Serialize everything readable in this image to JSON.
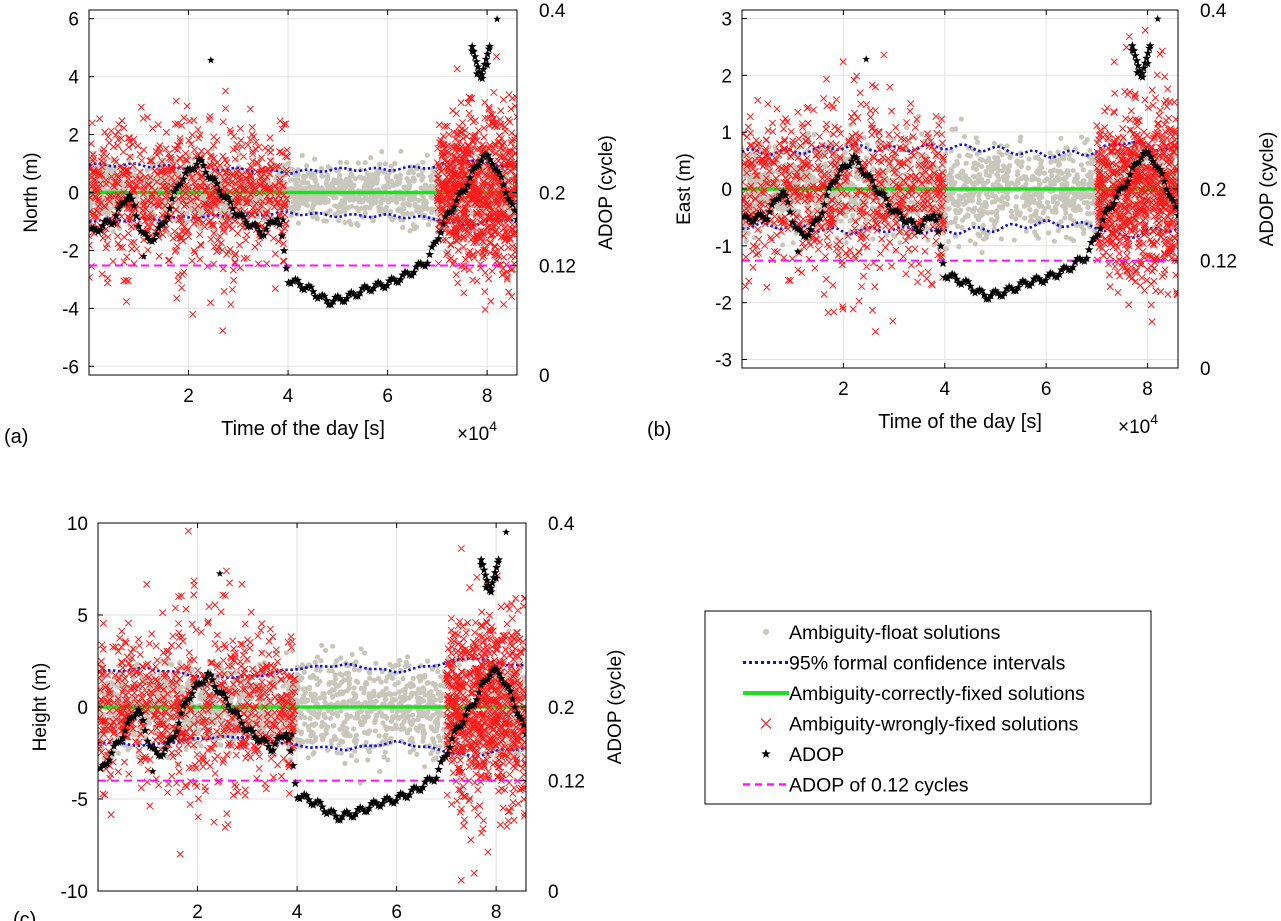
{
  "chart_data": [
    {
      "panel_label": "(a)",
      "type": "scatter",
      "xlabel": "Time of the day [s]",
      "x_multiplier": "×10^4",
      "ylabel": "North (m)",
      "y2label": "ADOP (cycle)",
      "xlim": [
        0,
        8.6
      ],
      "ylim": [
        -6.3,
        6.3
      ],
      "y2lim": [
        0,
        0.4
      ],
      "xticks": [
        "2",
        "4",
        "6",
        "8"
      ],
      "yticks": [
        "-6",
        "-4",
        "-2",
        "0",
        "2",
        "4",
        "6"
      ],
      "y2ticks": [
        "0",
        "0.12",
        "0.2",
        "0.4"
      ],
      "ci": 0.9,
      "noise": 1.0,
      "grid": true,
      "series": [
        {
          "name": "Ambiguity-float solutions",
          "marker": "dot",
          "color": "#c9c6bb"
        },
        {
          "name": "95% formal confidence intervals",
          "values": [
            [
              0,
              0.95
            ],
            [
              1,
              0.95
            ],
            [
              2,
              0.85
            ],
            [
              3,
              0.8
            ],
            [
              4,
              0.7
            ],
            [
              5,
              0.8
            ],
            [
              6,
              0.8
            ],
            [
              7,
              0.9
            ],
            [
              7.5,
              1.15
            ],
            [
              8,
              1.0
            ],
            [
              8.6,
              0.9
            ]
          ],
          "color": "#1010d8"
        },
        {
          "name": "Ambiguity-correctly-fixed solutions",
          "values": [
            [
              0,
              0
            ],
            [
              8.6,
              0
            ]
          ],
          "color": "#1ee01e"
        },
        {
          "name": "Ambiguity-wrongly-fixed solutions",
          "marker": "x",
          "color": "#ff1a1a",
          "spread": 1.6
        },
        {
          "name": "ADOP",
          "marker": "star",
          "color": "#000000",
          "values": [
            [
              0,
              0.155
            ],
            [
              0.5,
              0.17
            ],
            [
              0.8,
              0.2
            ],
            [
              1.0,
              0.165
            ],
            [
              1.2,
              0.145
            ],
            [
              1.5,
              0.165
            ],
            [
              1.8,
              0.21
            ],
            [
              2.2,
              0.235
            ],
            [
              2.6,
              0.205
            ],
            [
              3.0,
              0.175
            ],
            [
              3.5,
              0.155
            ],
            [
              3.8,
              0.175
            ],
            [
              4.0,
              0.105
            ],
            [
              4.4,
              0.095
            ],
            [
              4.8,
              0.08
            ],
            [
              5.2,
              0.085
            ],
            [
              5.6,
              0.095
            ],
            [
              6.0,
              0.1
            ],
            [
              6.4,
              0.11
            ],
            [
              6.8,
              0.125
            ],
            [
              7.2,
              0.175
            ],
            [
              7.5,
              0.2
            ],
            [
              7.9,
              0.24
            ],
            [
              8.1,
              0.235
            ],
            [
              8.4,
              0.2
            ],
            [
              8.6,
              0.17
            ]
          ],
          "outliers": [
            [
              2.45,
              0.345
            ],
            [
              8.2,
              0.39
            ],
            [
              1.1,
              0.13
            ],
            [
              3.9,
              0.17
            ]
          ],
          "spike": [
            [
              7.7,
              0.355
            ],
            [
              7.8,
              0.33
            ],
            [
              7.9,
              0.325
            ],
            [
              8.0,
              0.34
            ],
            [
              8.05,
              0.36
            ]
          ]
        },
        {
          "name": "ADOP of 0.12 cycles",
          "values": [
            [
              0,
              0.12
            ],
            [
              8.6,
              0.12
            ]
          ],
          "color": "#ff10ff"
        }
      ]
    },
    {
      "panel_label": "(b)",
      "type": "scatter",
      "xlabel": "Time of the day [s]",
      "x_multiplier": "×10^4",
      "ylabel": "East (m)",
      "y2label": "ADOP (cycle)",
      "xlim": [
        0,
        8.6
      ],
      "ylim": [
        -3.15,
        3.15
      ],
      "y2lim": [
        0,
        0.4
      ],
      "xticks": [
        "2",
        "4",
        "6",
        "8"
      ],
      "yticks": [
        "-3",
        "-2",
        "-1",
        "0",
        "1",
        "2",
        "3"
      ],
      "y2ticks": [
        "0",
        "0.12",
        "0.2",
        "0.4"
      ],
      "ci": 0.7,
      "noise": 0.55,
      "grid": true,
      "series": [
        {
          "name": "Ambiguity-float solutions",
          "marker": "dot",
          "color": "#c9c6bb"
        },
        {
          "name": "95% formal confidence intervals",
          "values": [
            [
              0,
              0.65
            ],
            [
              1,
              0.65
            ],
            [
              2,
              0.75
            ],
            [
              3,
              0.7
            ],
            [
              4,
              0.75
            ],
            [
              5,
              0.7
            ],
            [
              6,
              0.6
            ],
            [
              7,
              0.65
            ],
            [
              7.5,
              0.85
            ],
            [
              8,
              0.75
            ],
            [
              8.6,
              0.68
            ]
          ],
          "color": "#1010d8"
        },
        {
          "name": "Ambiguity-correctly-fixed solutions",
          "values": [
            [
              0,
              0
            ],
            [
              8.6,
              0
            ]
          ],
          "color": "#1ee01e"
        },
        {
          "name": "Ambiguity-wrongly-fixed solutions",
          "marker": "x",
          "color": "#ff1a1a",
          "spread": 0.9
        },
        {
          "name": "ADOP",
          "marker": "star",
          "color": "#000000",
          "values": [
            [
              0,
              0.165
            ],
            [
              0.5,
              0.17
            ],
            [
              0.8,
              0.2
            ],
            [
              1.0,
              0.165
            ],
            [
              1.2,
              0.145
            ],
            [
              1.5,
              0.165
            ],
            [
              1.8,
              0.21
            ],
            [
              2.2,
              0.235
            ],
            [
              2.6,
              0.205
            ],
            [
              3.0,
              0.175
            ],
            [
              3.5,
              0.155
            ],
            [
              3.8,
              0.175
            ],
            [
              4.0,
              0.105
            ],
            [
              4.4,
              0.095
            ],
            [
              4.8,
              0.08
            ],
            [
              5.2,
              0.085
            ],
            [
              5.6,
              0.095
            ],
            [
              6.0,
              0.1
            ],
            [
              6.4,
              0.11
            ],
            [
              6.8,
              0.125
            ],
            [
              7.2,
              0.175
            ],
            [
              7.5,
              0.2
            ],
            [
              7.9,
              0.24
            ],
            [
              8.1,
              0.235
            ],
            [
              8.4,
              0.2
            ],
            [
              8.6,
              0.17
            ]
          ],
          "outliers": [
            [
              2.45,
              0.345
            ],
            [
              8.2,
              0.39
            ],
            [
              1.1,
              0.13
            ],
            [
              3.9,
              0.17
            ]
          ],
          "spike": [
            [
              7.7,
              0.355
            ],
            [
              7.8,
              0.33
            ],
            [
              7.9,
              0.325
            ],
            [
              8.0,
              0.34
            ],
            [
              8.05,
              0.36
            ]
          ]
        },
        {
          "name": "ADOP of 0.12 cycles",
          "values": [
            [
              0,
              0.12
            ],
            [
              8.6,
              0.12
            ]
          ],
          "color": "#ff10ff"
        }
      ]
    },
    {
      "panel_label": "(c)",
      "type": "scatter",
      "xlabel": "",
      "ylabel": "Height (m)",
      "y2label": "ADOP (cycle)",
      "xlim": [
        0,
        8.6
      ],
      "ylim": [
        -10,
        10
      ],
      "y2lim": [
        0,
        0.4
      ],
      "xticks": [
        "2",
        "4",
        "6",
        "8"
      ],
      "yticks": [
        "-10",
        "-5",
        "0",
        "5",
        "10"
      ],
      "y2ticks": [
        "0",
        "0.12",
        "0.2",
        "0.4"
      ],
      "ci": 2.0,
      "noise": 1.8,
      "grid": true,
      "series": [
        {
          "name": "Ambiguity-float solutions",
          "marker": "dot",
          "color": "#c9c6bb"
        },
        {
          "name": "95% formal confidence intervals",
          "values": [
            [
              0,
              1.9
            ],
            [
              1,
              2.1
            ],
            [
              2,
              1.7
            ],
            [
              3,
              1.6
            ],
            [
              4,
              2.1
            ],
            [
              5,
              2.3
            ],
            [
              6,
              1.9
            ],
            [
              7,
              2.4
            ],
            [
              7.5,
              2.7
            ],
            [
              8,
              2.4
            ],
            [
              8.6,
              2.2
            ]
          ],
          "color": "#1010d8"
        },
        {
          "name": "Ambiguity-correctly-fixed solutions",
          "values": [
            [
              0,
              0
            ],
            [
              8.6,
              0
            ]
          ],
          "color": "#1ee01e"
        },
        {
          "name": "Ambiguity-wrongly-fixed solutions",
          "marker": "x",
          "color": "#ff1a1a",
          "spread": 3.0
        },
        {
          "name": "ADOP",
          "marker": "star",
          "color": "#000000",
          "values": [
            [
              0,
              0.125
            ],
            [
              0.5,
              0.17
            ],
            [
              0.8,
              0.2
            ],
            [
              1.0,
              0.165
            ],
            [
              1.2,
              0.145
            ],
            [
              1.5,
              0.165
            ],
            [
              1.8,
              0.21
            ],
            [
              2.2,
              0.235
            ],
            [
              2.6,
              0.205
            ],
            [
              3.0,
              0.175
            ],
            [
              3.5,
              0.155
            ],
            [
              3.8,
              0.175
            ],
            [
              4.0,
              0.105
            ],
            [
              4.4,
              0.095
            ],
            [
              4.8,
              0.08
            ],
            [
              5.2,
              0.085
            ],
            [
              5.6,
              0.095
            ],
            [
              6.0,
              0.1
            ],
            [
              6.4,
              0.11
            ],
            [
              6.8,
              0.125
            ],
            [
              7.2,
              0.175
            ],
            [
              7.5,
              0.2
            ],
            [
              7.9,
              0.24
            ],
            [
              8.1,
              0.235
            ],
            [
              8.4,
              0.2
            ],
            [
              8.6,
              0.17
            ]
          ],
          "outliers": [
            [
              2.45,
              0.345
            ],
            [
              8.2,
              0.39
            ],
            [
              1.1,
              0.13
            ],
            [
              3.9,
              0.17
            ]
          ],
          "spike": [
            [
              7.7,
              0.355
            ],
            [
              7.8,
              0.33
            ],
            [
              7.9,
              0.325
            ],
            [
              8.0,
              0.34
            ],
            [
              8.05,
              0.36
            ]
          ]
        },
        {
          "name": "ADOP of 0.12 cycles",
          "values": [
            [
              0,
              0.12
            ],
            [
              8.6,
              0.12
            ]
          ],
          "color": "#ff10ff"
        }
      ]
    }
  ],
  "legend": {
    "placement": "right of panel (c)",
    "entries": [
      {
        "label": "Ambiguity-float solutions",
        "marker": "dot",
        "color": "#c9c6bb"
      },
      {
        "label": "95% formal confidence intervals",
        "marker": "dotted-line",
        "color": "#1010d8"
      },
      {
        "label": "Ambiguity-correctly-fixed solutions",
        "marker": "solid-line",
        "color": "#1ee01e"
      },
      {
        "label": "Ambiguity-wrongly-fixed solutions",
        "marker": "x",
        "color": "#ff1a1a"
      },
      {
        "label": "ADOP",
        "marker": "star",
        "color": "#000000"
      },
      {
        "label": "ADOP of 0.12 cycles",
        "marker": "dashed-line",
        "color": "#ff10ff"
      }
    ]
  }
}
